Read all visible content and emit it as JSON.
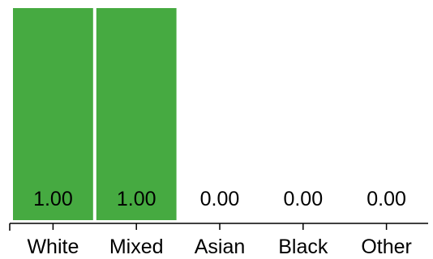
{
  "chart_data": {
    "type": "bar",
    "categories": [
      "White",
      "Mixed",
      "Asian",
      "Black",
      "Other"
    ],
    "values": [
      1.0,
      1.0,
      0.0,
      0.0,
      0.0
    ],
    "data_labels": [
      "1.00",
      "1.00",
      "0.00",
      "0.00",
      "0.00"
    ],
    "title": "",
    "xlabel": "",
    "ylabel": "",
    "ylim": [
      0,
      1
    ],
    "grid": false,
    "bar_color": "#46aa41"
  }
}
